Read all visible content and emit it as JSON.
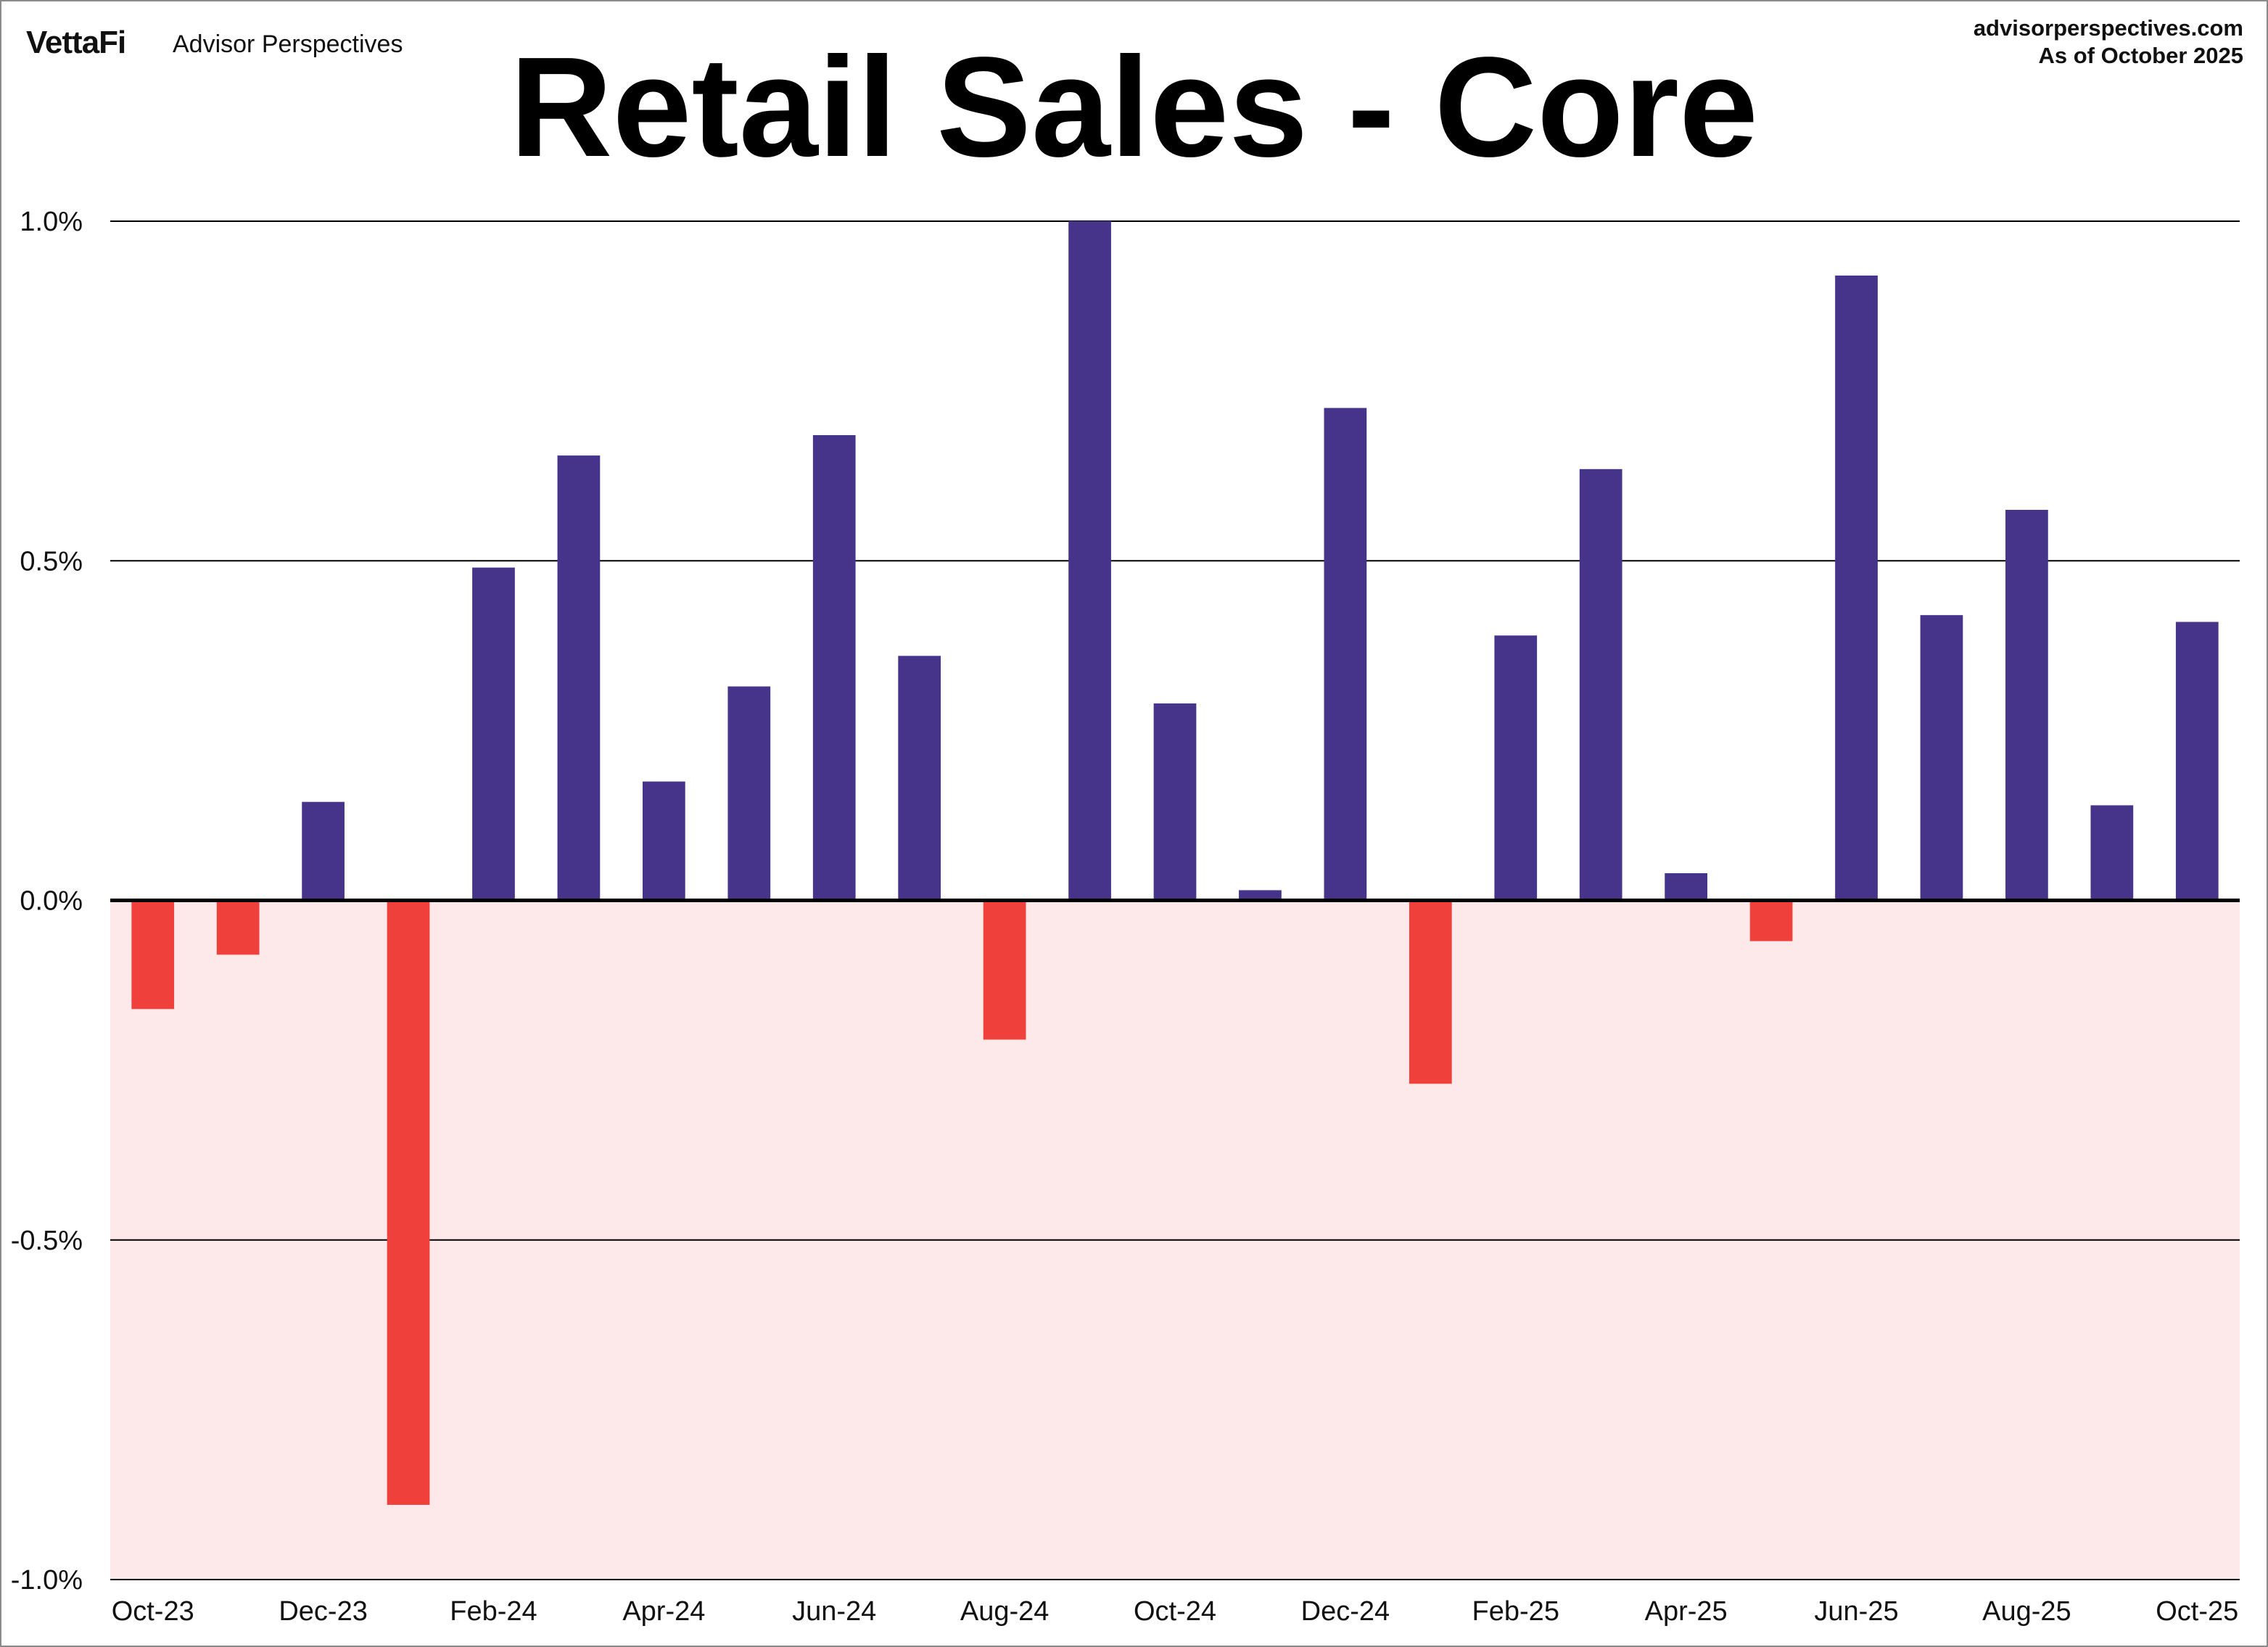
{
  "header": {
    "brand_logo": "VettaFi",
    "brand_name": "Advisor Perspectives",
    "source_url": "advisorperspectives.com",
    "as_of": "As of October 2025"
  },
  "colors": {
    "positive_bar": "#46348a",
    "negative_bar": "#f0403c",
    "negative_region": "#fde9ea",
    "gridline": "#000000"
  },
  "chart_data": {
    "type": "bar",
    "title": "Retail Sales - Core",
    "xlabel": "",
    "ylabel": "",
    "ylim": [
      -1.0,
      1.0
    ],
    "y_ticks": [
      1.0,
      0.5,
      0.0,
      -0.5,
      -1.0
    ],
    "y_tick_labels": [
      "1.0%",
      "0.5%",
      "0.0%",
      "-0.5%",
      "-1.0%"
    ],
    "grid": true,
    "negative_region_shaded": true,
    "categories": [
      "Oct-23",
      "Nov-23",
      "Dec-23",
      "Jan-24",
      "Feb-24",
      "Mar-24",
      "Apr-24",
      "May-24",
      "Jun-24",
      "Jul-24",
      "Aug-24",
      "Sep-24",
      "Oct-24",
      "Nov-24",
      "Dec-24",
      "Jan-25",
      "Feb-25",
      "Mar-25",
      "Apr-25",
      "May-25",
      "Jun-25",
      "Jul-25",
      "Aug-25",
      "Sep-25",
      "Oct-25"
    ],
    "x_tick_labels": [
      "Oct-23",
      "",
      "Dec-23",
      "",
      "Feb-24",
      "",
      "Apr-24",
      "",
      "Jun-24",
      "",
      "Aug-24",
      "",
      "Oct-24",
      "",
      "Dec-24",
      "",
      "Feb-25",
      "",
      "Apr-25",
      "",
      "Jun-25",
      "",
      "Aug-25",
      "",
      "Oct-25"
    ],
    "values": [
      -0.16,
      -0.08,
      0.145,
      -0.89,
      0.49,
      0.655,
      0.175,
      0.315,
      0.685,
      0.36,
      -0.205,
      1.0,
      0.29,
      0.015,
      0.725,
      -0.27,
      0.39,
      0.635,
      0.04,
      -0.06,
      0.92,
      0.42,
      0.575,
      0.14,
      0.41
    ]
  }
}
